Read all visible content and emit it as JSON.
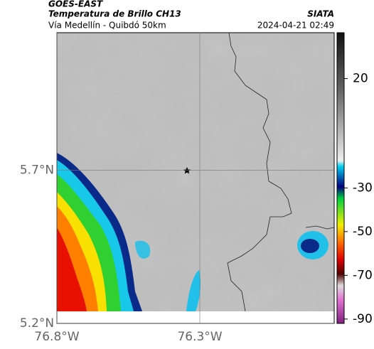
{
  "header": {
    "title": "GOES-EAST",
    "subtitle": "Temperatura de Brillo CH13",
    "location": "Vía Medellín - Quibdó 50km",
    "source": "SIATA",
    "datetime": "2024-04-21 02:49"
  },
  "map": {
    "xlim": [
      -76.8,
      -75.83
    ],
    "ylim": [
      5.2,
      6.15
    ],
    "xticks": [
      {
        "value": -76.8,
        "label": "76.8°W"
      },
      {
        "value": -76.3,
        "label": "76.3°W"
      }
    ],
    "yticks": [
      {
        "value": 5.7,
        "label": "5.7°N"
      },
      {
        "value": 5.2,
        "label": "5.2°N"
      }
    ],
    "grid": true
  },
  "colorbar": {
    "lim": [
      -92,
      41
    ],
    "ticks": [
      20,
      -30,
      -50,
      -70,
      -90
    ]
  }
}
